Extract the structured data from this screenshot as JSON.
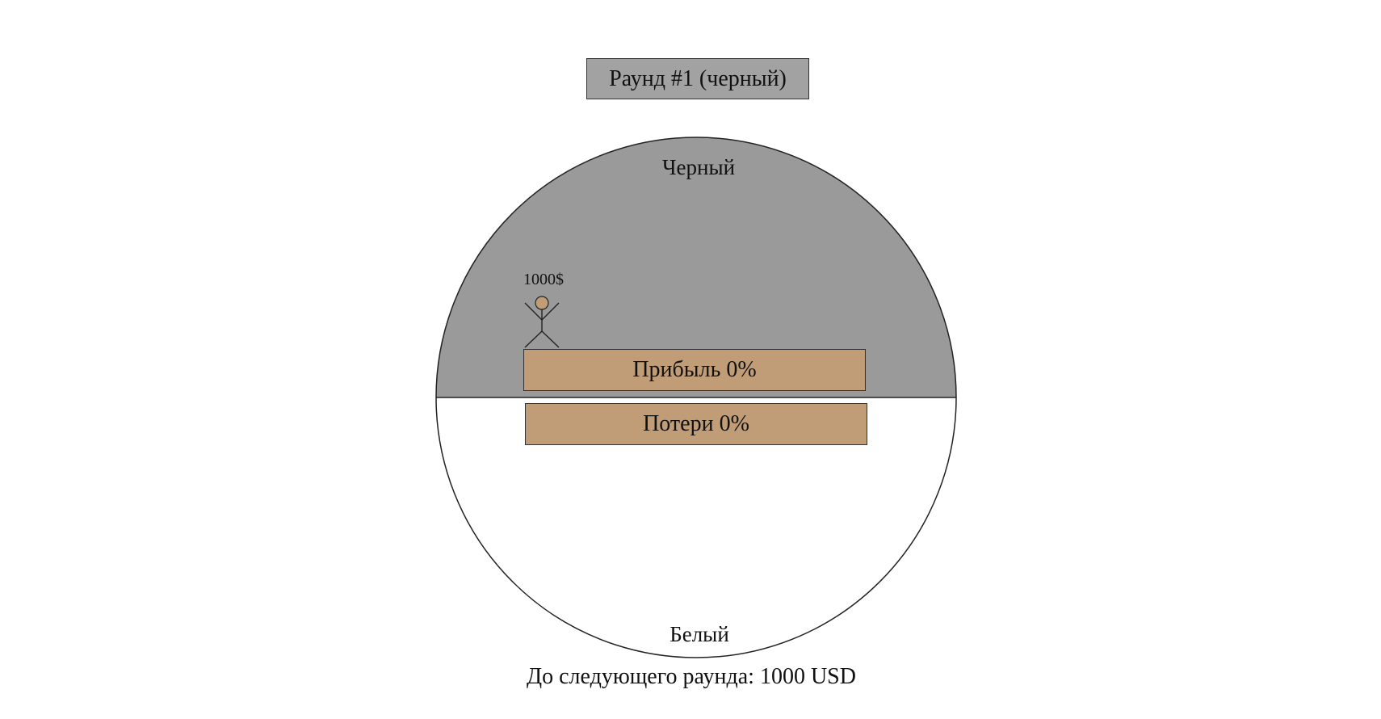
{
  "round": {
    "title": "Раунд #1 (черный)",
    "color": "#a2a2a2"
  },
  "wheel": {
    "top_label": "Черный",
    "bottom_label": "Белый",
    "top_color": "#9a9a9a",
    "bottom_color": "#ffffff"
  },
  "player": {
    "balance": "1000$",
    "icon": "stick-figure-icon",
    "color": "#c09d76"
  },
  "stats": {
    "profit_label": "Прибыль 0%",
    "loss_label": "Потери 0%",
    "bar_color": "#c09d76"
  },
  "footer": {
    "next_round": "До следующего раунда: 1000 USD"
  }
}
